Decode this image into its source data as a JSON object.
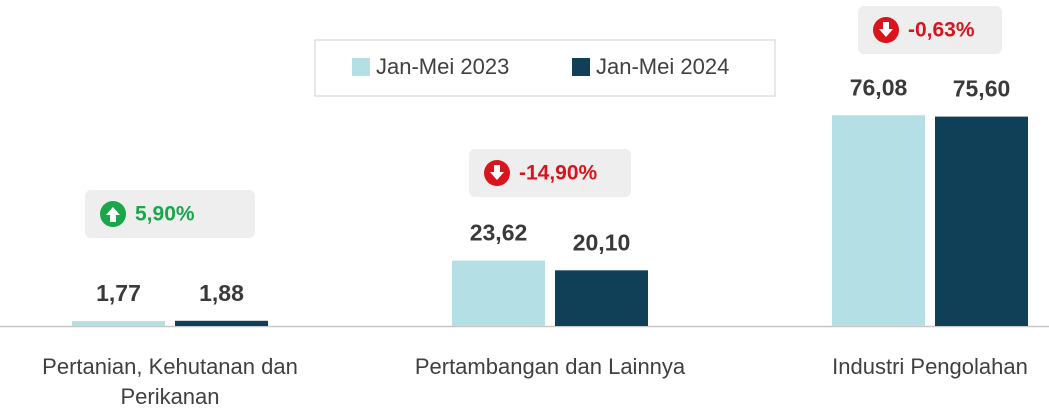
{
  "chart_data": {
    "type": "bar",
    "categories": [
      "Pertanian, Kehutanan dan Perikanan",
      "Pertambangan dan Lainnya",
      "Industri Pengolahan"
    ],
    "series": [
      {
        "name": "Jan-Mei 2023",
        "color": "#b3dfe5",
        "values": [
          1.77,
          23.62,
          76.08
        ],
        "value_labels": [
          "1,77",
          "23,62",
          "76,08"
        ]
      },
      {
        "name": "Jan-Mei 2024",
        "color": "#0f4058",
        "values": [
          1.88,
          20.1,
          75.6
        ],
        "value_labels": [
          "1,88",
          "20,10",
          "75,60"
        ]
      }
    ],
    "annotations": [
      {
        "text": "5,90%",
        "color": "#1aa64a"
      },
      {
        "text": "-14,90%",
        "color": "#d9141c"
      },
      {
        "text": "-0,63%",
        "color": "#d9141c"
      }
    ],
    "legend": "top"
  }
}
